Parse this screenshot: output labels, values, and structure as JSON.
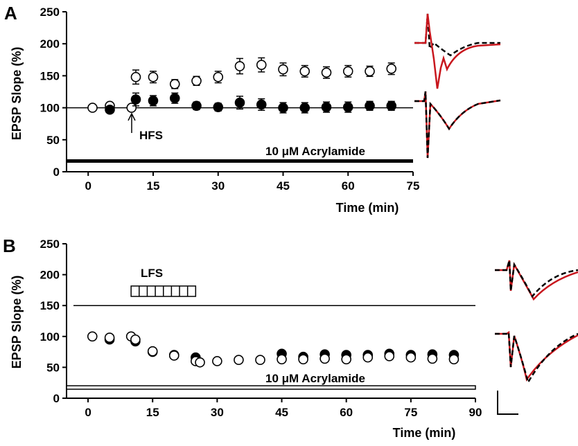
{
  "chart_data": [
    {
      "panel": "A",
      "type": "scatter",
      "ylabel": "EPSP Slope (%)",
      "xlabel": "Time (min)",
      "xlim": [
        -5,
        75
      ],
      "ylim": [
        0,
        250
      ],
      "xticks": [
        0,
        15,
        30,
        45,
        60,
        75
      ],
      "yticks": [
        0,
        50,
        100,
        150,
        200,
        250
      ],
      "baseline": 100,
      "bar_label": "10 μM Acrylamide",
      "arrow_label": "HFS",
      "arrow_x": 10,
      "series": [
        {
          "marker": "open-circle",
          "x": [
            1,
            5,
            10,
            11,
            15,
            20,
            25,
            30,
            35,
            40,
            45,
            50,
            55,
            60,
            65,
            70
          ],
          "y": [
            100,
            103,
            100,
            148,
            148,
            137,
            142,
            148,
            165,
            167,
            160,
            157,
            155,
            157,
            157,
            161
          ],
          "err": [
            0,
            0,
            0,
            11,
            9,
            7,
            7,
            9,
            12,
            11,
            10,
            9,
            9,
            9,
            8,
            9
          ]
        },
        {
          "marker": "filled-circle",
          "x": [
            5,
            11,
            15,
            20,
            25,
            30,
            35,
            40,
            45,
            50,
            55,
            60,
            65,
            70
          ],
          "y": [
            97,
            113,
            111,
            115,
            103,
            101,
            108,
            105,
            100,
            100,
            101,
            101,
            103,
            103
          ],
          "err": [
            0,
            10,
            8,
            8,
            6,
            6,
            10,
            9,
            8,
            8,
            8,
            8,
            7,
            7
          ]
        }
      ]
    },
    {
      "panel": "B",
      "type": "scatter",
      "ylabel": "EPSP Slope (%)",
      "xlabel": "Time (min)",
      "xlim": [
        -5,
        90
      ],
      "ylim": [
        0,
        250
      ],
      "xticks": [
        0,
        15,
        30,
        45,
        60,
        75,
        90
      ],
      "yticks": [
        0,
        50,
        100,
        150,
        200,
        250
      ],
      "reference_line": 150,
      "bar_label": "10 μM Acrylamide",
      "stim_label": "LFS",
      "stim_range": [
        10,
        25
      ],
      "series": [
        {
          "marker": "filled-circle",
          "x": [
            5,
            11,
            15,
            20,
            25,
            45,
            50,
            55,
            60,
            65,
            70,
            75,
            80,
            85
          ],
          "y": [
            95,
            92,
            75,
            70,
            66,
            72,
            67,
            71,
            70,
            70,
            72,
            70,
            71,
            70
          ]
        },
        {
          "marker": "open-circle",
          "x": [
            1,
            5,
            10,
            11,
            15,
            20,
            25,
            26,
            30,
            35,
            40,
            45,
            50,
            55,
            60,
            65,
            70,
            75,
            80,
            85
          ],
          "y": [
            100,
            98,
            100,
            95,
            76,
            69,
            60,
            58,
            60,
            62,
            62,
            63,
            63,
            64,
            63,
            66,
            68,
            66,
            64,
            63
          ]
        }
      ]
    }
  ]
}
